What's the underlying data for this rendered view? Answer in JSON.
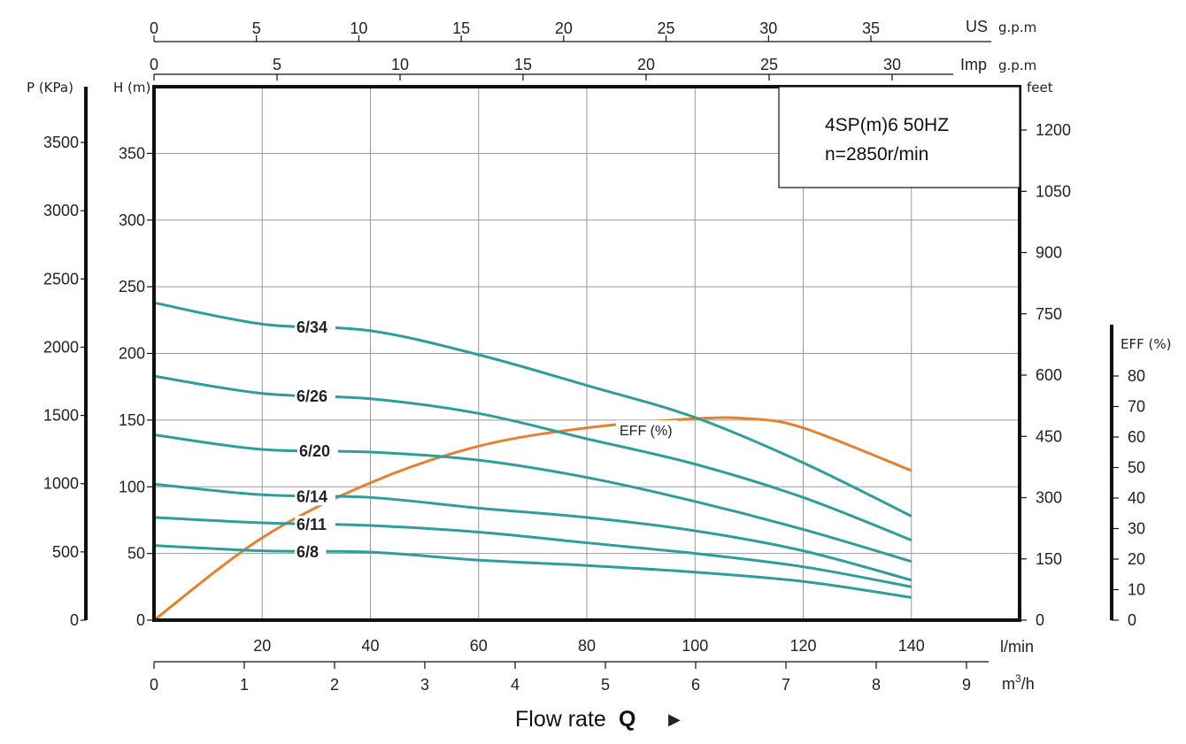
{
  "colors": {
    "head_curve": "#2f9d9b",
    "eff_curve": "#e5812f",
    "axis": "#111111",
    "grid": "#9a9a9a"
  },
  "chart_data": {
    "type": "line",
    "model_box": {
      "line1": "4SP(m)6  50HZ",
      "line2": "n=2850r/min"
    },
    "title": "",
    "xlabel_main": "Flow rate",
    "xlabel_symbol": "Q",
    "xlabel_arrow": "▶",
    "axes": {
      "flow_lpm": {
        "unit": "l/min",
        "range": [
          0,
          160
        ],
        "ticks": [
          20,
          40,
          60,
          80,
          100,
          120,
          140
        ]
      },
      "flow_m3h": {
        "unit_base": "m",
        "unit_sup": "3",
        "unit_tail": "/h",
        "range": [
          0,
          9.6
        ],
        "ticks": [
          0,
          1,
          2,
          3,
          4,
          5,
          6,
          7,
          8,
          9
        ]
      },
      "flow_us_gpm": {
        "unit": "US",
        "unit_small": "g.p.m",
        "ticks": [
          0,
          5,
          10,
          15,
          20,
          25,
          30,
          35
        ]
      },
      "flow_imp_gpm": {
        "unit": "Imp",
        "unit_small": "g.p.m",
        "ticks": [
          0,
          5,
          10,
          15,
          20,
          25,
          30
        ]
      },
      "head_m": {
        "label": "H",
        "label_unit": "(m)",
        "range": [
          0,
          400
        ],
        "ticks": [
          0,
          50,
          100,
          150,
          200,
          250,
          300,
          350
        ]
      },
      "head_feet": {
        "label": "feet",
        "ticks": [
          0,
          150,
          300,
          450,
          600,
          750,
          900,
          1050,
          1200
        ]
      },
      "pressure_kpa": {
        "label": "P",
        "label_unit": "(KPa)",
        "ticks": [
          0,
          500,
          1000,
          1500,
          2000,
          2500,
          3000,
          3500
        ]
      },
      "efficiency": {
        "label": "EFF",
        "label_unit": "(%)",
        "range": [
          0,
          100
        ],
        "ticks": [
          0,
          10,
          20,
          30,
          40,
          50,
          60,
          70,
          80
        ]
      }
    },
    "x": [
      0,
      20,
      40,
      60,
      80,
      100,
      120,
      140
    ],
    "series": [
      {
        "name": "6/34",
        "values": [
          238,
          222,
          217,
          199,
          176,
          152,
          118,
          78
        ]
      },
      {
        "name": "6/26",
        "values": [
          183,
          170,
          166,
          155,
          136,
          117,
          92,
          60
        ]
      },
      {
        "name": "6/20",
        "values": [
          139,
          128,
          126,
          120,
          107,
          89,
          68,
          44
        ]
      },
      {
        "name": "6/14",
        "values": [
          102,
          94,
          92,
          84,
          77,
          67,
          52,
          30
        ]
      },
      {
        "name": "6/11",
        "values": [
          77,
          73,
          71,
          66,
          58,
          50,
          40,
          25
        ]
      },
      {
        "name": "6/8",
        "values": [
          56,
          52,
          51,
          45,
          41,
          36,
          29,
          17
        ]
      }
    ],
    "efficiency": {
      "name": "EFF (%)",
      "x": [
        0,
        20,
        40,
        60,
        80,
        100,
        110,
        120,
        140
      ],
      "values": [
        0,
        27,
        45,
        57,
        63,
        66,
        66,
        63,
        49
      ]
    }
  }
}
